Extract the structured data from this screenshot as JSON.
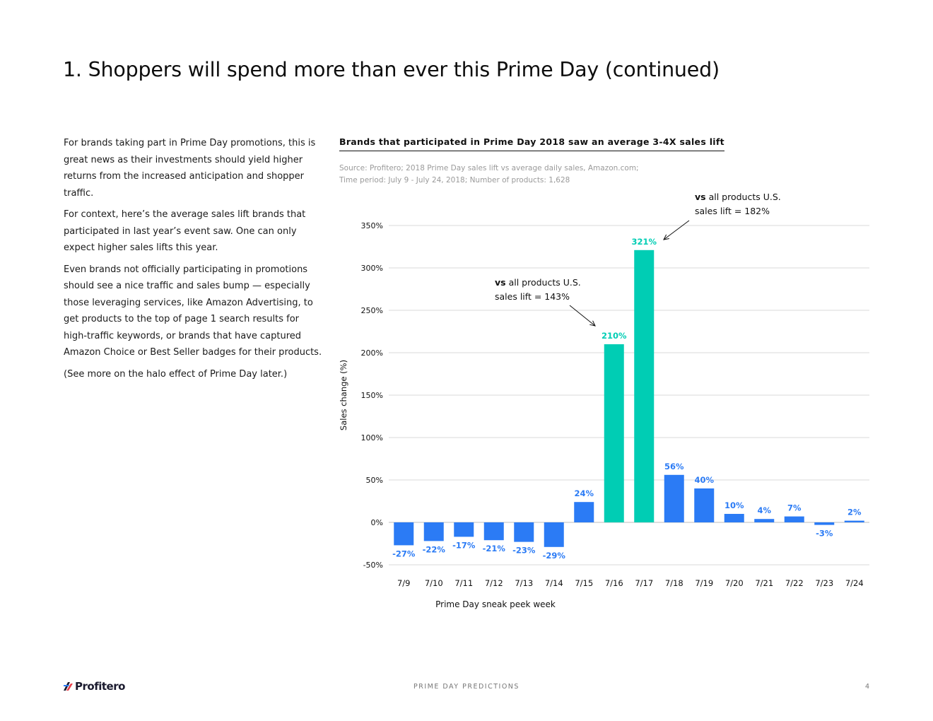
{
  "page": {
    "title": "1. Shoppers will spend more than ever this Prime Day (continued)",
    "paragraphs": [
      "For brands taking part in Prime Day promotions, this is great news as their investments should yield higher returns from the increased anticipation and shopper traffic.",
      "For context, here’s the average sales lift brands that participated in last year’s event saw. One can only expect higher sales lifts this year.",
      "Even brands not officially participating in promotions should see a nice traffic and sales bump — especially those leveraging services, like Amazon Advertising, to get products to the top of page 1 search results for high-traffic keywords, or brands that have captured Amazon Choice or Best Seller badges for their products.",
      "(See more on the halo effect of Prime Day later.)"
    ]
  },
  "chart_header": {
    "title": "Brands that participated in Prime Day 2018 saw an average 3-4X sales lift",
    "source_line1": "Source: Profitero; 2018 Prime Day sales lift vs average daily sales, Amazon.com;",
    "source_line2": "Time period: July 9 - July 24, 2018; Number of products: 1,628"
  },
  "annotations": [
    {
      "lead": "vs",
      "text": " all products U.S. sales lift = 182%"
    },
    {
      "lead": "vs",
      "text": " all products U.S. sales lift = 143%"
    }
  ],
  "chart_data": {
    "type": "bar",
    "title": "Brands that participated in Prime Day 2018 saw an average 3-4X sales lift",
    "xlabel": "Prime Day sneak peek week",
    "ylabel": "Sales change (%)",
    "ylim": [
      -50,
      350
    ],
    "yticks": [
      -50,
      0,
      50,
      100,
      150,
      200,
      250,
      300,
      350
    ],
    "ytick_labels": [
      "-50%",
      "0%",
      "50%",
      "100%",
      "150%",
      "200%",
      "250%",
      "300%",
      "350%"
    ],
    "grid": true,
    "categories": [
      "7/9",
      "7/10",
      "7/11",
      "7/12",
      "7/13",
      "7/14",
      "7/15",
      "7/16",
      "7/17",
      "7/18",
      "7/19",
      "7/20",
      "7/21",
      "7/22",
      "7/23",
      "7/24"
    ],
    "values": [
      -27,
      -22,
      -17,
      -21,
      -23,
      -29,
      24,
      210,
      321,
      56,
      40,
      10,
      4,
      7,
      -3,
      2
    ],
    "value_labels": [
      "-27%",
      "-22%",
      "-17%",
      "-21%",
      "-23%",
      "-29%",
      "24%",
      "210%",
      "321%",
      "56%",
      "40%",
      "10%",
      "4%",
      "7%",
      "-3%",
      "2%"
    ],
    "highlight_categories": [
      "7/16",
      "7/17"
    ],
    "colors": {
      "default": "#2B7BF5",
      "highlight": "#00CDB4",
      "grid": "#d9d9d9"
    }
  },
  "footer": {
    "logo_text": "Profitero",
    "center_text": "PRIME DAY PREDICTIONS",
    "page_number": "4"
  }
}
